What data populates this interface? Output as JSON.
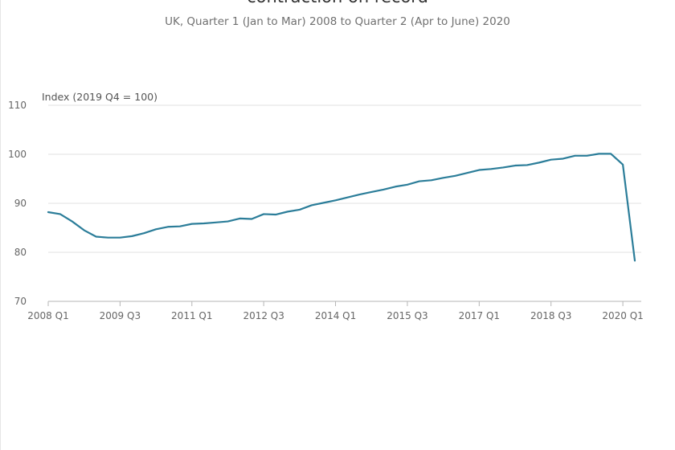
{
  "chart_data": {
    "type": "line",
    "title": "contraction on record",
    "subtitle": "UK, Quarter 1 (Jan to Mar) 2008 to Quarter 2 (Apr to June) 2020",
    "ylabel": "Index (2019 Q4 = 100)",
    "xlabel": "",
    "ylim": [
      70,
      110
    ],
    "yticks": [
      70,
      80,
      90,
      100,
      110
    ],
    "grid": true,
    "line_color": "#2b7d99",
    "x": [
      "2008 Q1",
      "2008 Q2",
      "2008 Q3",
      "2008 Q4",
      "2009 Q1",
      "2009 Q2",
      "2009 Q3",
      "2009 Q4",
      "2010 Q1",
      "2010 Q2",
      "2010 Q3",
      "2010 Q4",
      "2011 Q1",
      "2011 Q2",
      "2011 Q3",
      "2011 Q4",
      "2012 Q1",
      "2012 Q2",
      "2012 Q3",
      "2012 Q4",
      "2013 Q1",
      "2013 Q2",
      "2013 Q3",
      "2013 Q4",
      "2014 Q1",
      "2014 Q2",
      "2014 Q3",
      "2014 Q4",
      "2015 Q1",
      "2015 Q2",
      "2015 Q3",
      "2015 Q4",
      "2016 Q1",
      "2016 Q2",
      "2016 Q3",
      "2016 Q4",
      "2017 Q1",
      "2017 Q2",
      "2017 Q3",
      "2017 Q4",
      "2018 Q1",
      "2018 Q2",
      "2018 Q3",
      "2018 Q4",
      "2019 Q1",
      "2019 Q2",
      "2019 Q3",
      "2019 Q4",
      "2020 Q1",
      "2020 Q2"
    ],
    "xtick_labels": [
      "2008 Q1",
      "2009 Q3",
      "2011 Q1",
      "2012 Q3",
      "2014 Q1",
      "2015 Q3",
      "2017 Q1",
      "2018 Q3",
      "2020 Q1"
    ],
    "xtick_indices": [
      0,
      6,
      12,
      18,
      24,
      30,
      36,
      42,
      48
    ],
    "values": [
      88.2,
      87.8,
      86.3,
      84.5,
      83.2,
      83.0,
      83.0,
      83.3,
      83.9,
      84.7,
      85.2,
      85.3,
      85.8,
      85.9,
      86.1,
      86.3,
      86.9,
      86.8,
      87.8,
      87.7,
      88.3,
      88.7,
      89.6,
      90.1,
      90.6,
      91.2,
      91.8,
      92.3,
      92.8,
      93.4,
      93.8,
      94.5,
      94.7,
      95.2,
      95.6,
      96.2,
      96.8,
      97.0,
      97.3,
      97.7,
      97.8,
      98.3,
      98.9,
      99.1,
      99.7,
      99.7,
      100.1,
      100.1,
      97.9,
      78.3
    ]
  }
}
